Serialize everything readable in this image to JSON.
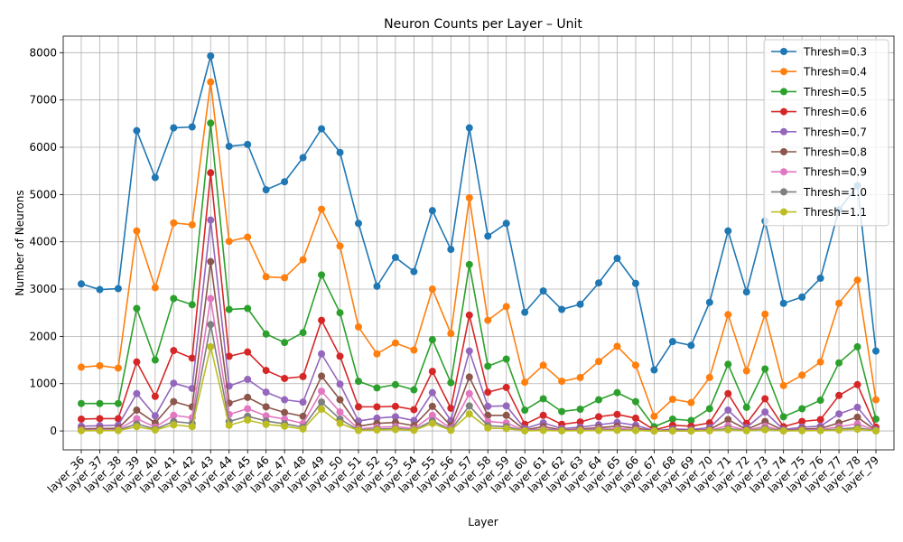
{
  "chart_data": {
    "type": "line",
    "title": "Neuron Counts per Layer – Unit",
    "xlabel": "Layer",
    "ylabel": "Number of Neurons",
    "ylim": [
      -400,
      8350
    ],
    "yticks": [
      0,
      1000,
      2000,
      3000,
      4000,
      5000,
      6000,
      7000,
      8000
    ],
    "grid": true,
    "legend_position": "top-right",
    "categories": [
      "layer_36",
      "layer_37",
      "layer_38",
      "layer_39",
      "layer_40",
      "layer_41",
      "layer_42",
      "layer_43",
      "layer_44",
      "layer_45",
      "layer_46",
      "layer_47",
      "layer_48",
      "layer_49",
      "layer_50",
      "layer_51",
      "layer_52",
      "layer_53",
      "layer_54",
      "layer_55",
      "layer_56",
      "layer_57",
      "layer_58",
      "layer_59",
      "layer_60",
      "layer_61",
      "layer_62",
      "layer_63",
      "layer_64",
      "layer_65",
      "layer_66",
      "layer_67",
      "layer_68",
      "layer_69",
      "layer_70",
      "layer_71",
      "layer_72",
      "layer_73",
      "layer_74",
      "layer_75",
      "layer_76",
      "layer_77",
      "layer_78",
      "layer_79"
    ],
    "series": [
      {
        "name": "Thresh=0.3",
        "color": "#1f77b4",
        "values": [
          3110,
          2990,
          3010,
          6350,
          5360,
          6410,
          6430,
          7930,
          6020,
          6060,
          5100,
          5270,
          5780,
          6390,
          5890,
          4390,
          3060,
          3670,
          3370,
          4660,
          3840,
          6410,
          4120,
          4390,
          2510,
          2960,
          2570,
          2680,
          3130,
          3650,
          3120,
          1290,
          1890,
          1810,
          2720,
          4230,
          2940,
          4440,
          2700,
          2830,
          3230,
          4680,
          5190,
          1690
        ]
      },
      {
        "name": "Thresh=0.4",
        "color": "#ff7f0e",
        "values": [
          1350,
          1380,
          1330,
          4230,
          3030,
          4400,
          4360,
          7380,
          4010,
          4100,
          3260,
          3240,
          3620,
          4690,
          3910,
          2200,
          1630,
          1860,
          1710,
          3000,
          2060,
          4930,
          2340,
          2630,
          1030,
          1390,
          1050,
          1130,
          1470,
          1790,
          1390,
          310,
          670,
          600,
          1130,
          2460,
          1270,
          2470,
          960,
          1180,
          1460,
          2700,
          3190,
          660
        ]
      },
      {
        "name": "Thresh=0.5",
        "color": "#2ca02c",
        "values": [
          580,
          580,
          580,
          2590,
          1500,
          2800,
          2670,
          6510,
          2570,
          2590,
          2050,
          1870,
          2080,
          3300,
          2500,
          1050,
          910,
          980,
          870,
          1930,
          1020,
          3520,
          1370,
          1520,
          440,
          680,
          410,
          460,
          660,
          810,
          620,
          90,
          250,
          220,
          470,
          1410,
          500,
          1310,
          300,
          470,
          650,
          1440,
          1780,
          250
        ]
      },
      {
        "name": "Thresh=0.6",
        "color": "#d62728",
        "values": [
          250,
          260,
          260,
          1460,
          730,
          1700,
          1540,
          5460,
          1580,
          1670,
          1280,
          1110,
          1150,
          2340,
          1580,
          510,
          510,
          520,
          450,
          1260,
          480,
          2450,
          820,
          920,
          140,
          330,
          140,
          190,
          300,
          350,
          270,
          20,
          120,
          100,
          170,
          790,
          160,
          680,
          90,
          200,
          240,
          750,
          980,
          80
        ]
      },
      {
        "name": "Thresh=0.7",
        "color": "#9467bd",
        "values": [
          100,
          110,
          120,
          790,
          320,
          1010,
          900,
          4460,
          950,
          1090,
          820,
          660,
          610,
          1630,
          990,
          210,
          270,
          300,
          220,
          810,
          220,
          1690,
          520,
          530,
          50,
          170,
          50,
          80,
          130,
          180,
          120,
          5,
          40,
          30,
          70,
          440,
          70,
          400,
          30,
          80,
          100,
          360,
          500,
          30
        ]
      },
      {
        "name": "Thresh=0.8",
        "color": "#8c564b",
        "values": [
          45,
          50,
          55,
          440,
          170,
          620,
          510,
          3580,
          590,
          710,
          510,
          390,
          310,
          1160,
          660,
          100,
          160,
          180,
          110,
          520,
          110,
          1140,
          330,
          330,
          20,
          90,
          20,
          40,
          70,
          100,
          60,
          2,
          15,
          10,
          30,
          240,
          30,
          200,
          10,
          40,
          50,
          170,
          290,
          10
        ]
      },
      {
        "name": "Thresh=0.9",
        "color": "#e377c2",
        "values": [
          20,
          20,
          25,
          260,
          80,
          330,
          280,
          2800,
          350,
          470,
          320,
          250,
          160,
          840,
          400,
          40,
          80,
          90,
          50,
          330,
          50,
          790,
          200,
          170,
          10,
          40,
          10,
          20,
          40,
          50,
          30,
          1,
          5,
          3,
          15,
          110,
          15,
          100,
          5,
          20,
          25,
          90,
          150,
          5
        ]
      },
      {
        "name": "Thresh=1.0",
        "color": "#7f7f7f",
        "values": [
          10,
          10,
          15,
          150,
          40,
          200,
          160,
          2250,
          200,
          310,
          210,
          150,
          80,
          610,
          250,
          20,
          40,
          50,
          25,
          210,
          25,
          530,
          110,
          90,
          5,
          20,
          5,
          10,
          20,
          25,
          15,
          0,
          2,
          1,
          8,
          50,
          8,
          50,
          2,
          10,
          12,
          40,
          70,
          2
        ]
      },
      {
        "name": "Thresh=1.1",
        "color": "#bcbd22",
        "values": [
          5,
          5,
          8,
          90,
          20,
          130,
          90,
          1780,
          120,
          230,
          140,
          100,
          40,
          460,
          160,
          10,
          20,
          30,
          12,
          160,
          12,
          360,
          60,
          50,
          2,
          10,
          2,
          5,
          10,
          12,
          8,
          0,
          1,
          0,
          4,
          25,
          4,
          25,
          1,
          5,
          6,
          20,
          35,
          1
        ]
      }
    ]
  }
}
